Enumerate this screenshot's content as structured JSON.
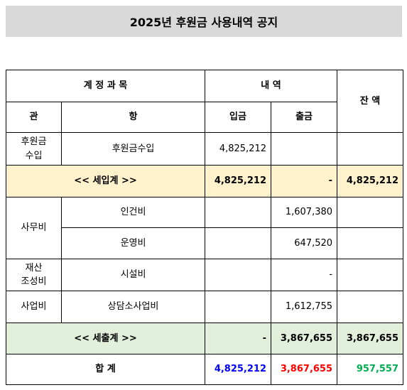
{
  "title": "2025년 후원금 사용내역 공지",
  "table": {
    "header": {
      "account": "계 정 과 목",
      "detail": "내 역",
      "balance": "잔 액",
      "gwan": "관",
      "hang": "항",
      "income": "입금",
      "expense": "출금"
    },
    "income_row": {
      "gwan": "후원금\n수입",
      "hang": "후원금수입",
      "income": "4,825,212"
    },
    "subtotal_income": {
      "label": "<< 세입계 >>",
      "income": "4,825,212",
      "expense": "-",
      "balance": "4,825,212"
    },
    "expense_groups": [
      {
        "gwan": "사무비",
        "items": [
          {
            "hang": "인건비",
            "expense": "1,607,380"
          },
          {
            "hang": "운영비",
            "expense": "647,520"
          }
        ]
      },
      {
        "gwan": "재산\n조성비",
        "items": [
          {
            "hang": "시설비",
            "expense": "-"
          }
        ]
      },
      {
        "gwan": "사업비",
        "items": [
          {
            "hang": "상담소사업비",
            "expense": "1,612,755"
          }
        ]
      }
    ],
    "subtotal_expense": {
      "label": "<< 세출계 >>",
      "income": "-",
      "expense": "3,867,655",
      "balance": "3,867,655"
    },
    "total": {
      "label": "합 계",
      "income": "4,825,212",
      "expense": "3,867,655",
      "balance": "957,557"
    }
  }
}
